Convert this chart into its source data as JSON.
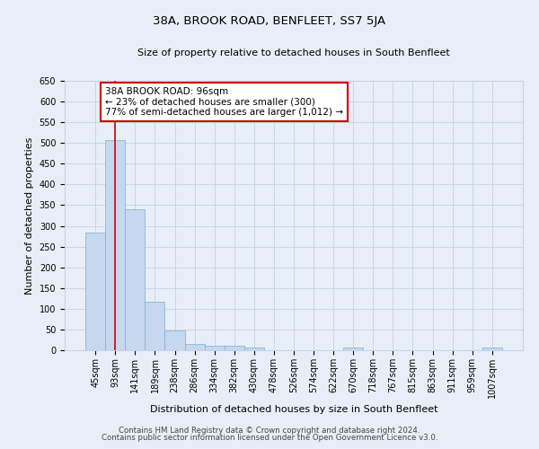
{
  "title": "38A, BROOK ROAD, BENFLEET, SS7 5JA",
  "subtitle": "Size of property relative to detached houses in South Benfleet",
  "xlabel": "Distribution of detached houses by size in South Benfleet",
  "ylabel": "Number of detached properties",
  "categories": [
    "45sqm",
    "93sqm",
    "141sqm",
    "189sqm",
    "238sqm",
    "286sqm",
    "334sqm",
    "382sqm",
    "430sqm",
    "478sqm",
    "526sqm",
    "574sqm",
    "622sqm",
    "670sqm",
    "718sqm",
    "767sqm",
    "815sqm",
    "863sqm",
    "911sqm",
    "959sqm",
    "1007sqm"
  ],
  "values": [
    283,
    507,
    340,
    117,
    47,
    15,
    10,
    10,
    6,
    0,
    0,
    0,
    0,
    6,
    0,
    0,
    0,
    0,
    0,
    0,
    6
  ],
  "bar_color": "#c5d8ef",
  "bar_edge_color": "#7aafd4",
  "ylim": [
    0,
    650
  ],
  "yticks": [
    0,
    50,
    100,
    150,
    200,
    250,
    300,
    350,
    400,
    450,
    500,
    550,
    600,
    650
  ],
  "property_line_x": 1.0,
  "annotation_text": "38A BROOK ROAD: 96sqm\n← 23% of detached houses are smaller (300)\n77% of semi-detached houses are larger (1,012) →",
  "annotation_box_color": "#ffffff",
  "annotation_box_edge_color": "#cc0000",
  "property_line_color": "#cc0000",
  "footer_line1": "Contains HM Land Registry data © Crown copyright and database right 2024.",
  "footer_line2": "Contains public sector information licensed under the Open Government Licence v3.0.",
  "bg_color": "#e8eef8",
  "plot_bg_color": "#e8eef8",
  "grid_color": "#c8d0e0",
  "title_fontsize": 9.5,
  "subtitle_fontsize": 8,
  "ylabel_fontsize": 8,
  "xlabel_fontsize": 8,
  "tick_fontsize": 7,
  "annotation_fontsize": 7.5
}
